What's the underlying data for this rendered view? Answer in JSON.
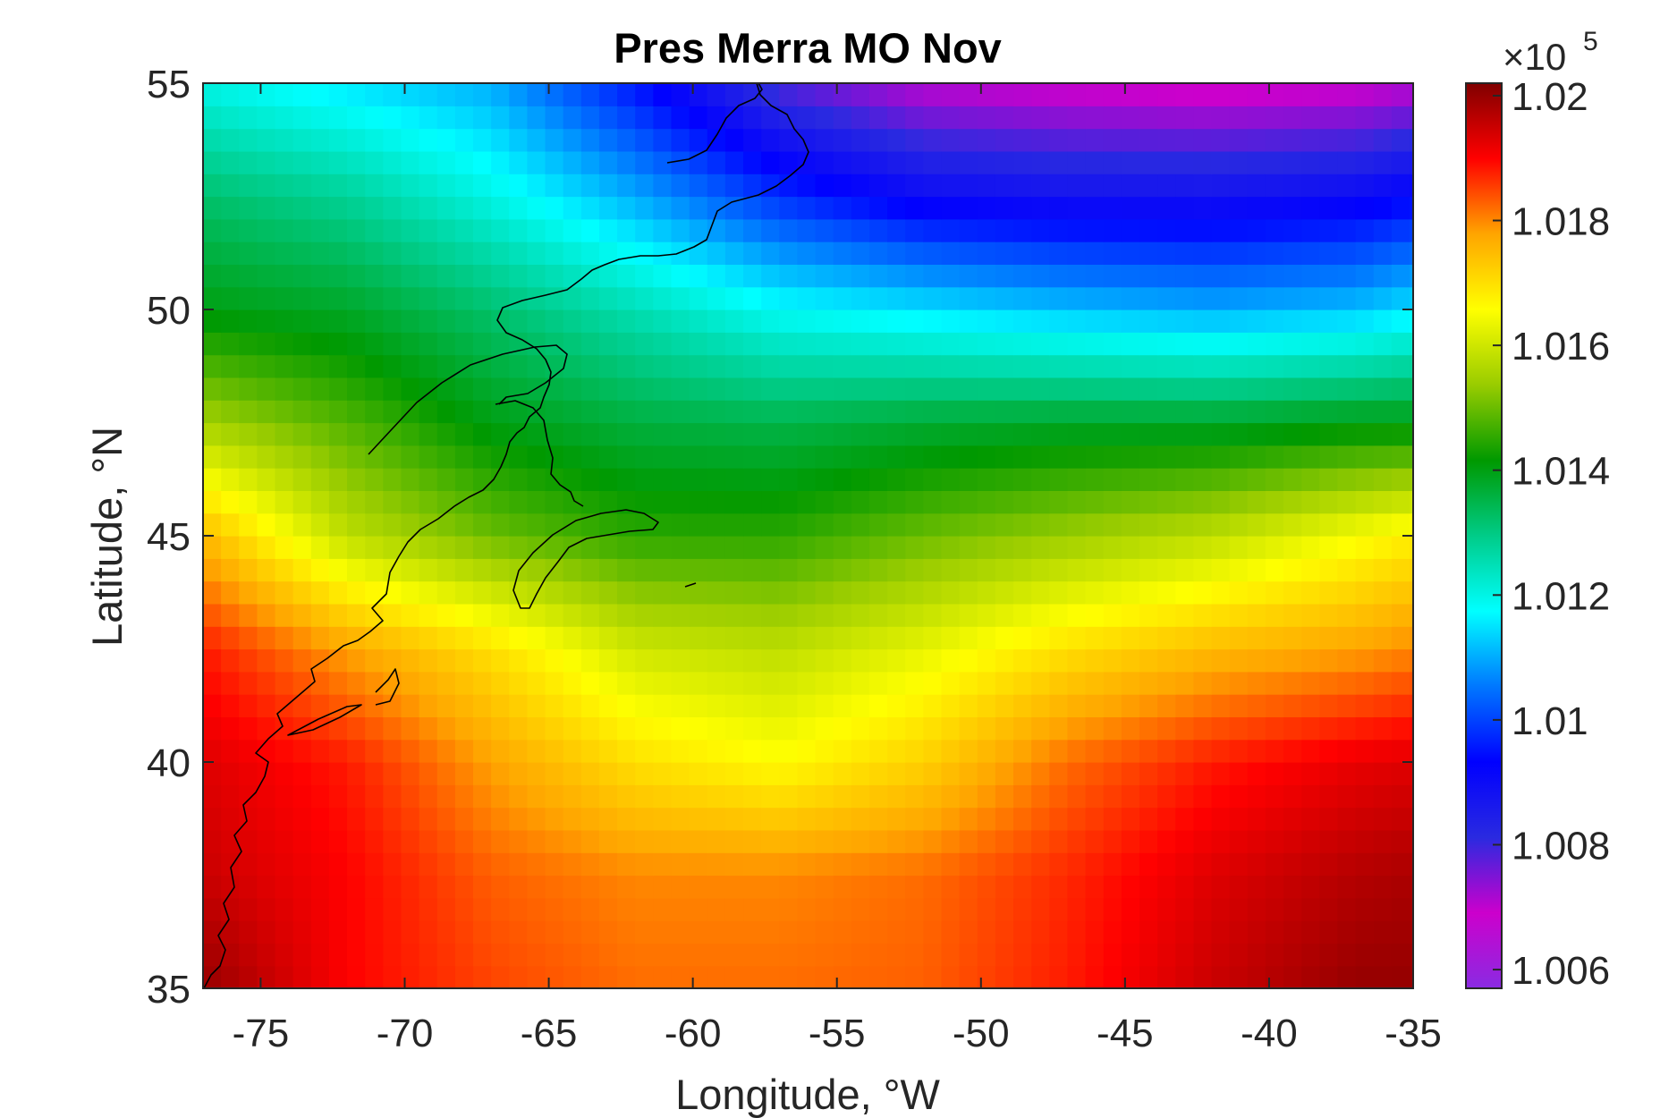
{
  "chart_data": {
    "type": "heatmap",
    "title": "Pres Merra MO Nov",
    "xlabel": "Longitude, °W",
    "ylabel": "Latitude, °N",
    "xlim": [
      -77,
      -35
    ],
    "ylim": [
      35,
      55
    ],
    "x_ticks": [
      -75,
      -70,
      -65,
      -60,
      -55,
      -50,
      -45,
      -40,
      -35
    ],
    "y_ticks": [
      35,
      40,
      45,
      50,
      55
    ],
    "colorbar": {
      "exponent_label": "×10",
      "exponent": "5",
      "scale": 100000,
      "range": [
        1.0057,
        1.0202
      ],
      "ticks": [
        "1.006",
        "1.008",
        "1.01",
        "1.012",
        "1.014",
        "1.016",
        "1.018",
        "1.02"
      ],
      "colormap": [
        "#8a2be2",
        "#cc00cc",
        "#2a2ae0",
        "#0000ff",
        "#0077ff",
        "#00ffff",
        "#00cc88",
        "#009900",
        "#99cc00",
        "#ffff00",
        "#ffa500",
        "#ff0000",
        "#800000"
      ]
    },
    "grid": false,
    "pressure_field_pa": {
      "description": "gridded monthly mean sea-level pressure, 0.625° lon x 0.5° lat cells",
      "longitudes": [
        -77,
        -72,
        -67,
        -62,
        -57,
        -52,
        -47,
        -42,
        -37,
        -35
      ],
      "latitudes": [
        35,
        37.5,
        40,
        42.5,
        45,
        47.5,
        50,
        52.5,
        55
      ],
      "values_x1e5": [
        [
          1.02,
          1.019,
          1.0185,
          1.0182,
          1.0182,
          1.0183,
          1.0188,
          1.0195,
          1.02,
          1.02
        ],
        [
          1.0195,
          1.019,
          1.0183,
          1.018,
          1.018,
          1.0182,
          1.0187,
          1.0193,
          1.0197,
          1.0198
        ],
        [
          1.0193,
          1.0188,
          1.0178,
          1.017,
          1.0166,
          1.0172,
          1.0182,
          1.0188,
          1.0192,
          1.0193
        ],
        [
          1.0188,
          1.0178,
          1.017,
          1.016,
          1.0158,
          1.0163,
          1.017,
          1.0175,
          1.0178,
          1.018
        ],
        [
          1.0175,
          1.0158,
          1.015,
          1.0145,
          1.0145,
          1.015,
          1.0154,
          1.0158,
          1.0165,
          1.0168
        ],
        [
          1.0155,
          1.0148,
          1.014,
          1.0136,
          1.0135,
          1.0137,
          1.0138,
          1.0138,
          1.014,
          1.014
        ],
        [
          1.014,
          1.0138,
          1.0132,
          1.0125,
          1.0118,
          1.0115,
          1.0112,
          1.011,
          1.0112,
          1.0115
        ],
        [
          1.0132,
          1.0128,
          1.012,
          1.011,
          1.0098,
          1.009,
          1.0088,
          1.0088,
          1.009,
          1.0093
        ],
        [
          1.012,
          1.0115,
          1.011,
          1.0095,
          1.0078,
          1.007,
          1.0068,
          1.0067,
          1.0068,
          1.007
        ]
      ]
    }
  }
}
